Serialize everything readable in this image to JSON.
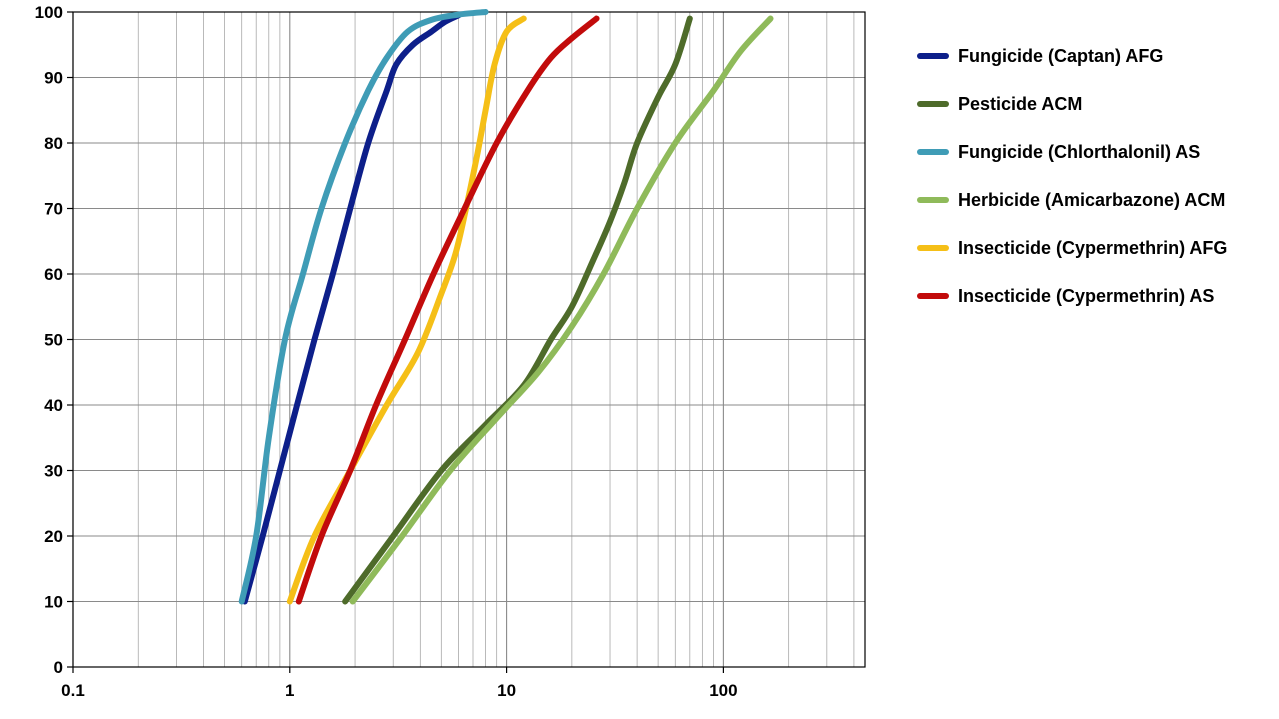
{
  "chart_data": {
    "type": "line",
    "title": "",
    "xlabel": "",
    "ylabel": "",
    "x_scale": "log",
    "xlim": [
      0.1,
      450
    ],
    "ylim": [
      0,
      100
    ],
    "grid": true,
    "legend_position": "right",
    "x_tick_labels": [
      "0.1",
      "1",
      "10",
      "100"
    ],
    "x_tick_values": [
      0.1,
      1,
      10,
      100
    ],
    "y_tick_values": [
      0,
      10,
      20,
      30,
      40,
      50,
      60,
      70,
      80,
      90,
      100
    ],
    "y_tick_labels": [
      "0",
      "10",
      "20",
      "30",
      "40",
      "50",
      "60",
      "70",
      "80",
      "90",
      "100"
    ],
    "series": [
      {
        "name": "Fungicide (Captan) AFG",
        "color": "#0d1f8a",
        "points": [
          [
            0.62,
            10
          ],
          [
            0.75,
            20
          ],
          [
            0.9,
            30
          ],
          [
            1.08,
            40
          ],
          [
            1.3,
            50
          ],
          [
            1.58,
            60
          ],
          [
            1.9,
            70
          ],
          [
            2.3,
            80
          ],
          [
            2.8,
            88
          ],
          [
            3.1,
            92
          ],
          [
            3.7,
            95
          ],
          [
            4.5,
            97
          ],
          [
            5.2,
            98.5
          ],
          [
            6.0,
            99.5
          ]
        ]
      },
      {
        "name": "Pesticide ACM",
        "color": "#4e6b2a",
        "points": [
          [
            1.8,
            10
          ],
          [
            3.0,
            20
          ],
          [
            5.0,
            30
          ],
          [
            8.0,
            37
          ],
          [
            12.0,
            43
          ],
          [
            16.0,
            50
          ],
          [
            20.0,
            55
          ],
          [
            25.0,
            62
          ],
          [
            30.0,
            68
          ],
          [
            35.0,
            74
          ],
          [
            40.0,
            80
          ],
          [
            50.0,
            87
          ],
          [
            60.0,
            92
          ],
          [
            70.0,
            99
          ]
        ]
      },
      {
        "name": "Fungicide (Chlorthalonil) AS",
        "color": "#3f9cb6",
        "points": [
          [
            0.6,
            10
          ],
          [
            0.7,
            20
          ],
          [
            0.8,
            35
          ],
          [
            0.95,
            50
          ],
          [
            1.15,
            60
          ],
          [
            1.4,
            70
          ],
          [
            1.8,
            80
          ],
          [
            2.3,
            88
          ],
          [
            2.8,
            93
          ],
          [
            3.5,
            97
          ],
          [
            4.5,
            98.8
          ],
          [
            6.0,
            99.6
          ],
          [
            8.0,
            100
          ]
        ]
      },
      {
        "name": "Herbicide (Amicarbazone) ACM",
        "color": "#8fba5a",
        "points": [
          [
            1.95,
            10
          ],
          [
            3.3,
            20
          ],
          [
            5.5,
            30
          ],
          [
            9.0,
            38
          ],
          [
            14.0,
            45
          ],
          [
            20.0,
            52
          ],
          [
            28.0,
            60
          ],
          [
            40.0,
            70
          ],
          [
            60.0,
            80
          ],
          [
            90.0,
            88
          ],
          [
            120.0,
            94
          ],
          [
            165.0,
            99
          ]
        ]
      },
      {
        "name": "Insecticide (Cypermethrin) AFG",
        "color": "#f5bf17",
        "points": [
          [
            1.0,
            10
          ],
          [
            1.3,
            20
          ],
          [
            1.9,
            30
          ],
          [
            2.8,
            40
          ],
          [
            3.9,
            48
          ],
          [
            5.0,
            57
          ],
          [
            5.8,
            63
          ],
          [
            6.5,
            70
          ],
          [
            7.3,
            78
          ],
          [
            8.0,
            85
          ],
          [
            8.8,
            92
          ],
          [
            10.0,
            97
          ],
          [
            12.0,
            99
          ]
        ]
      },
      {
        "name": "Insecticide (Cypermethrin) AS",
        "color": "#c20b0b",
        "points": [
          [
            1.1,
            10
          ],
          [
            1.4,
            20
          ],
          [
            1.9,
            30
          ],
          [
            2.5,
            40
          ],
          [
            3.4,
            50
          ],
          [
            4.6,
            60
          ],
          [
            6.4,
            70
          ],
          [
            9.0,
            80
          ],
          [
            12.5,
            88
          ],
          [
            16.0,
            93
          ],
          [
            20.0,
            96
          ],
          [
            26.0,
            99
          ]
        ]
      }
    ]
  }
}
